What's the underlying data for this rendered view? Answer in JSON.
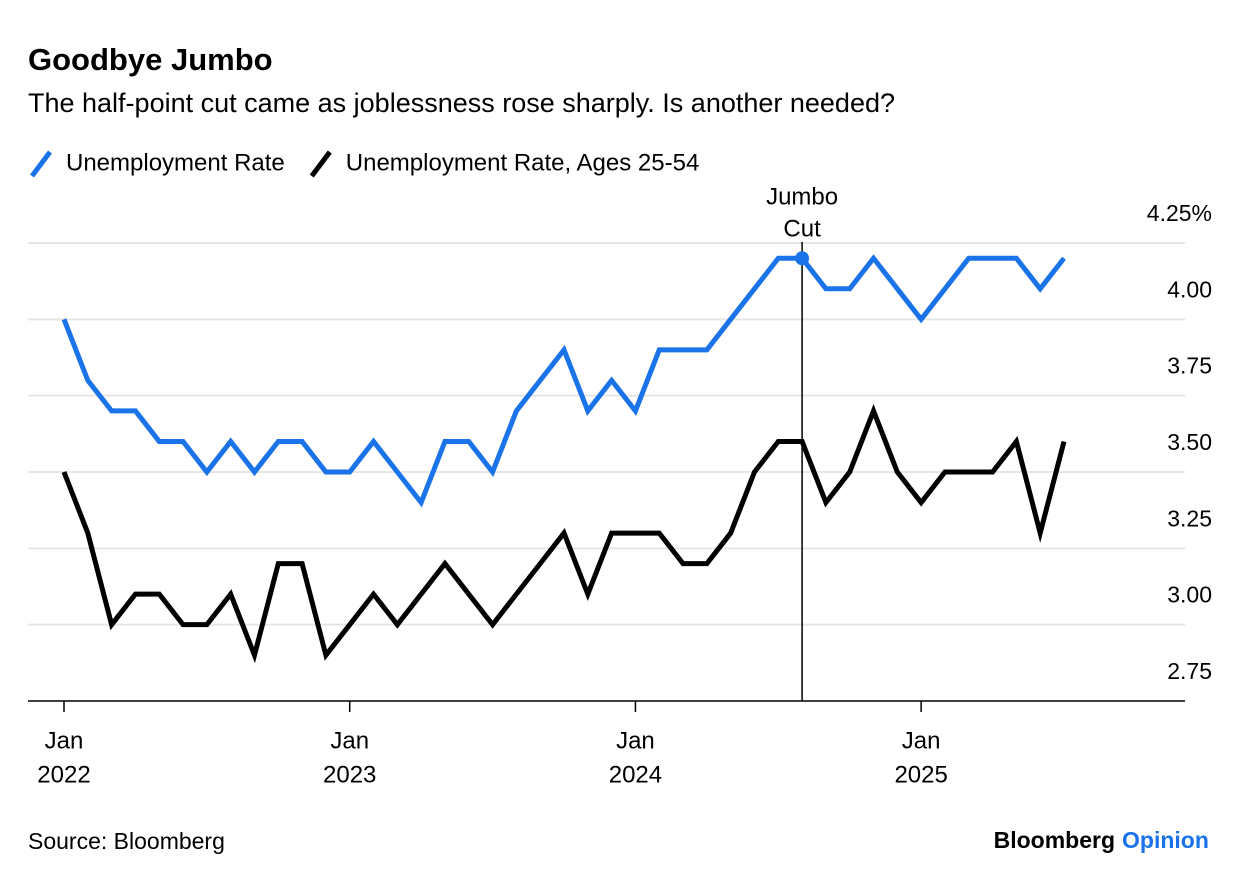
{
  "chart_data": {
    "type": "line",
    "title": "Goodbye Jumbo",
    "subtitle": "The half-point cut came as joblessness rose sharply. Is another needed?",
    "x": [
      "2022-01",
      "2022-02",
      "2022-03",
      "2022-04",
      "2022-05",
      "2022-06",
      "2022-07",
      "2022-08",
      "2022-09",
      "2022-10",
      "2022-11",
      "2022-12",
      "2023-01",
      "2023-02",
      "2023-03",
      "2023-04",
      "2023-05",
      "2023-06",
      "2023-07",
      "2023-08",
      "2023-09",
      "2023-10",
      "2023-11",
      "2023-12",
      "2024-01",
      "2024-02",
      "2024-03",
      "2024-04",
      "2024-05",
      "2024-06",
      "2024-07",
      "2024-08",
      "2024-09",
      "2024-10",
      "2024-11",
      "2024-12",
      "2025-01",
      "2025-02",
      "2025-03",
      "2025-04",
      "2025-05",
      "2025-06",
      "2025-07"
    ],
    "series": [
      {
        "name": "Unemployment Rate",
        "color": "#1a73e8",
        "values": [
          4.0,
          3.8,
          3.7,
          3.7,
          3.6,
          3.6,
          3.5,
          3.6,
          3.5,
          3.6,
          3.6,
          3.5,
          3.5,
          3.6,
          3.5,
          3.4,
          3.6,
          3.6,
          3.5,
          3.7,
          3.8,
          3.9,
          3.7,
          3.8,
          3.7,
          3.9,
          3.9,
          3.9,
          4.0,
          4.1,
          4.2,
          4.2,
          4.1,
          4.1,
          4.2,
          4.1,
          4.0,
          4.1,
          4.2,
          4.2,
          4.2,
          4.1,
          4.2
        ]
      },
      {
        "name": "Unemployment Rate, Ages 25-54",
        "color": "#000000",
        "values": [
          3.5,
          3.3,
          3.0,
          3.1,
          3.1,
          3.0,
          3.0,
          3.1,
          2.9,
          3.2,
          3.2,
          2.9,
          3.0,
          3.1,
          3.0,
          3.1,
          3.2,
          3.1,
          3.0,
          3.1,
          3.2,
          3.3,
          3.1,
          3.3,
          3.3,
          3.3,
          3.2,
          3.2,
          3.3,
          3.5,
          3.6,
          3.6,
          3.4,
          3.5,
          3.7,
          3.5,
          3.4,
          3.5,
          3.5,
          3.5,
          3.6,
          3.3,
          3.6
        ]
      }
    ],
    "xticks": [
      {
        "value": "2022-01",
        "label": [
          "Jan",
          "2022"
        ]
      },
      {
        "value": "2023-01",
        "label": [
          "Jan",
          "2023"
        ]
      },
      {
        "value": "2024-01",
        "label": [
          "Jan",
          "2024"
        ]
      },
      {
        "value": "2025-01",
        "label": [
          "Jan",
          "2025"
        ]
      }
    ],
    "ylim": [
      2.75,
      4.25
    ],
    "yticks": [
      {
        "value": 4.25,
        "label": "4.25%"
      },
      {
        "value": 4.0,
        "label": "4.00"
      },
      3.75,
      {
        "value": 3.5,
        "label": "3.50"
      },
      3.25,
      {
        "value": 3.0,
        "label": "3.00"
      },
      2.75
    ],
    "grid": true,
    "annotation": {
      "text": [
        "Jumbo",
        "Cut"
      ],
      "x": "2024-08"
    },
    "source": "Source: Bloomberg",
    "brand": [
      "Bloomberg",
      "Opinion"
    ]
  }
}
